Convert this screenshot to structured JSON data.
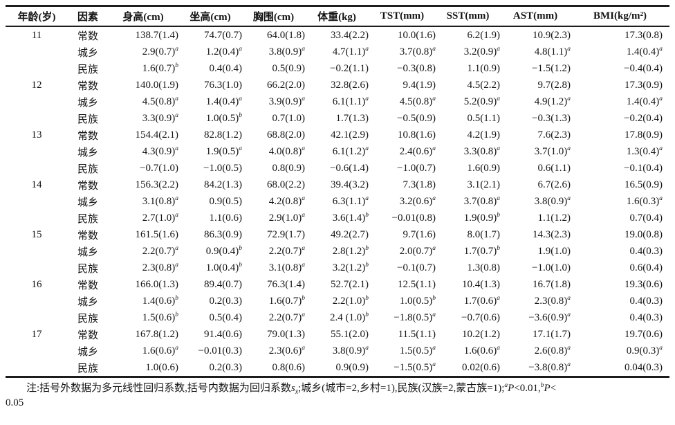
{
  "colors": {
    "background": "#ffffff",
    "text": "#141414",
    "rule": "#1c1c1c"
  },
  "table": {
    "columns": [
      "年龄(岁)",
      "因素",
      "身高(cm)",
      "坐高(cm)",
      "胸围(cm)",
      "体重(kg)",
      "TST(mm)",
      "SST(mm)",
      "AST(mm)",
      "BMI(kg/m²)"
    ],
    "groups": [
      {
        "age": "11",
        "rows": [
          {
            "factor": "常数",
            "values": [
              "138.7(1.4)",
              "74.7(0.7)",
              "64.0(1.8)",
              "33.4(2.2)",
              "10.0(1.6)",
              "6.2(1.9)",
              "10.9(2.3)",
              "17.3(0.8)"
            ]
          },
          {
            "factor": "城乡",
            "values": [
              "2.9(0.7)^{a}",
              "1.2(0.4)^{a}",
              "3.8(0.9)^{a}",
              "4.7(1.1)^{a}",
              "3.7(0.8)^{a}",
              "3.2(0.9)^{a}",
              "4.8(1.1)^{a}",
              "1.4(0.4)^{a}"
            ]
          },
          {
            "factor": "民族",
            "values": [
              "1.6(0.7)^{b}",
              "0.4(0.4)",
              "0.5(0.9)",
              "−0.2(1.1)",
              "−0.3(0.8)",
              "1.1(0.9)",
              "−1.5(1.2)",
              "−0.4(0.4)"
            ]
          }
        ]
      },
      {
        "age": "12",
        "rows": [
          {
            "factor": "常数",
            "values": [
              "140.0(1.9)",
              "76.3(1.0)",
              "66.2(2.0)",
              "32.8(2.6)",
              "9.4(1.9)",
              "4.5(2.2)",
              "9.7(2.8)",
              "17.3(0.9)"
            ]
          },
          {
            "factor": "城乡",
            "values": [
              "4.5(0.8)^{a}",
              "1.4(0.4)^{a}",
              "3.9(0.9)^{a}",
              "6.1(1.1)^{a}",
              "4.5(0.8)^{a}",
              "5.2(0.9)^{a}",
              "4.9(1.2)^{a}",
              "1.4(0.4)^{a}"
            ]
          },
          {
            "factor": "民族",
            "values": [
              "3.3(0.9)^{a}",
              "1.0(0.5)^{b}",
              "0.7(1.0)",
              "1.7(1.3)",
              "−0.5(0.9)",
              "0.5(1.1)",
              "−0.3(1.3)",
              "−0.2(0.4)"
            ]
          }
        ]
      },
      {
        "age": "13",
        "rows": [
          {
            "factor": "常数",
            "values": [
              "154.4(2.1)",
              "82.8(1.2)",
              "68.8(2.0)",
              "42.1(2.9)",
              "10.8(1.6)",
              "4.2(1.9)",
              "7.6(2.3)",
              "17.8(0.9)"
            ]
          },
          {
            "factor": "城乡",
            "values": [
              "4.3(0.9)^{a}",
              "1.9(0.5)^{a}",
              "4.0(0.8)^{a}",
              "6.1(1.2)^{a}",
              "2.4(0.6)^{a}",
              "3.3(0.8)^{a}",
              "3.7(1.0)^{a}",
              "1.3(0.4)^{a}"
            ]
          },
          {
            "factor": "民族",
            "values": [
              "−0.7(1.0)",
              "−1.0(0.5)",
              "0.8(0.9)",
              "−0.6(1.4)",
              "−1.0(0.7)",
              "1.6(0.9)",
              "0.6(1.1)",
              "−0.1(0.4)"
            ]
          }
        ]
      },
      {
        "age": "14",
        "rows": [
          {
            "factor": "常数",
            "values": [
              "156.3(2.2)",
              "84.2(1.3)",
              "68.0(2.2)",
              "39.4(3.2)",
              "7.3(1.8)",
              "3.1(2.1)",
              "6.7(2.6)",
              "16.5(0.9)"
            ]
          },
          {
            "factor": "城乡",
            "values": [
              "3.1(0.8)^{a}",
              "0.9(0.5)",
              "4.2(0.8)^{a}",
              "6.3(1.1)^{a}",
              "3.2(0.6)^{a}",
              "3.7(0.8)^{a}",
              "3.8(0.9)^{a}",
              "1.6(0.3)^{a}"
            ]
          },
          {
            "factor": "民族",
            "values": [
              "2.7(1.0)^{a}",
              "1.1(0.6)",
              "2.9(1.0)^{a}",
              "3.6(1.4)^{b}",
              "−0.01(0.8)",
              "1.9(0.9)^{b}",
              "1.1(1.2)",
              "0.7(0.4)"
            ]
          }
        ]
      },
      {
        "age": "15",
        "rows": [
          {
            "factor": "常数",
            "values": [
              "161.5(1.6)",
              "86.3(0.9)",
              "72.9(1.7)",
              "49.2(2.7)",
              "9.7(1.6)",
              "8.0(1.7)",
              "14.3(2.3)",
              "19.0(0.8)"
            ]
          },
          {
            "factor": "城乡",
            "values": [
              "2.2(0.7)^{a}",
              "0.9(0.4)^{b}",
              "2.2(0.7)^{a}",
              "2.8(1.2)^{b}",
              "2.0(0.7)^{a}",
              "1.7(0.7)^{b}",
              "1.9(1.0)",
              "0.4(0.3)"
            ]
          },
          {
            "factor": "民族",
            "values": [
              "2.3(0.8)^{a}",
              "1.0(0.4)^{b}",
              "3.1(0.8)^{a}",
              "3.2(1.2)^{b}",
              "−0.1(0.7)",
              "1.3(0.8)",
              "−1.0(1.0)",
              "0.6(0.4)"
            ]
          }
        ]
      },
      {
        "age": "16",
        "rows": [
          {
            "factor": "常数",
            "values": [
              "166.0(1.3)",
              "89.4(0.7)",
              "76.3(1.4)",
              "52.7(2.1)",
              "12.5(1.1)",
              "10.4(1.3)",
              "16.7(1.8)",
              "19.3(0.6)"
            ]
          },
          {
            "factor": "城乡",
            "values": [
              "1.4(0.6)^{b}",
              "0.2(0.3)",
              "1.6(0.7)^{b}",
              "2.2(1.0)^{b}",
              "1.0(0.5)^{b}",
              "1.7(0.6)^{a}",
              "2.3(0.8)^{a}",
              "0.4(0.3)"
            ]
          },
          {
            "factor": "民族",
            "values": [
              "1.5(0.6)^{b}",
              "0.5(0.4)",
              "2.2(0.7)^{a}",
              "2.4 (1.0)^{b}",
              "−1.8(0.5)^{a}",
              "−0.7(0.6)",
              "−3.6(0.9)^{a}",
              "0.4(0.3)"
            ]
          }
        ]
      },
      {
        "age": "17",
        "rows": [
          {
            "factor": "常数",
            "values": [
              "167.8(1.2)",
              "91.4(0.6)",
              "79.0(1.3)",
              "55.1(2.0)",
              "11.5(1.1)",
              "10.2(1.2)",
              "17.1(1.7)",
              "19.7(0.6)"
            ]
          },
          {
            "factor": "城乡",
            "values": [
              "1.6(0.6)^{a}",
              "−0.01(0.3)",
              "2.3(0.6)^{a}",
              "3.8(0.9)^{a}",
              "1.5(0.5)^{a}",
              "1.6(0.6)^{a}",
              "2.6(0.8)^{a}",
              "0.9(0.3)^{a}"
            ]
          },
          {
            "factor": "民族",
            "values": [
              "1.0(0.6)",
              "0.2(0.3)",
              "0.8(0.6)",
              "0.9(0.9)",
              "−1.5(0.5)^{a}",
              "0.02(0.6)",
              "−3.8(0.8)^{a}",
              "0.04(0.3)"
            ]
          }
        ]
      }
    ]
  },
  "note": {
    "line1": "注:括号外数据为多元线性回归系数,括号内数据为回归系数*s*_{x̄};城乡(城市=2,乡村=1),民族(汉族=2,蒙古族=1);^{a}*P*<0.01,^{b}*P*<",
    "line2": "0.05"
  }
}
